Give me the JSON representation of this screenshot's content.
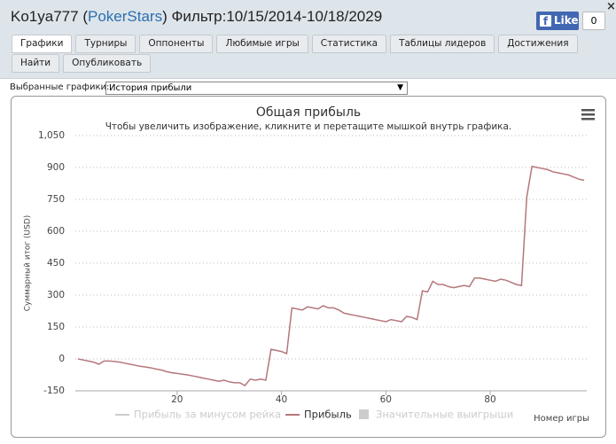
{
  "header": {
    "user": "Ko1ya777",
    "site_open": "(",
    "site": "PokerStars",
    "site_close": ")",
    "filter": "Фильтр:10/15/2014-10/18/2029",
    "like": "Like",
    "like_count": "0",
    "close": "×"
  },
  "tabs": [
    "Графики",
    "Турниры",
    "Оппоненты",
    "Любимые игры",
    "Статистика",
    "Таблицы лидеров",
    "Достижения",
    "Найти",
    "Опубликовать"
  ],
  "active_tab": 0,
  "selector": {
    "label": "Выбранные графики:",
    "value": "История прибыли"
  },
  "chart_data": {
    "type": "line",
    "title": "Общая прибыль",
    "subtitle": "Чтобы увеличить изображение, кликните и перетащите мышкой внутрь графика.",
    "ylabel": "Суммарный итог (USD)",
    "xlabel": "Номер игры",
    "x": [
      1,
      2,
      3,
      4,
      5,
      6,
      7,
      8,
      9,
      10,
      11,
      12,
      13,
      14,
      15,
      16,
      17,
      18,
      19,
      20,
      21,
      22,
      23,
      24,
      25,
      26,
      27,
      28,
      29,
      30,
      31,
      32,
      33,
      34,
      35,
      36,
      37,
      38,
      39,
      40,
      41,
      42,
      43,
      44,
      45,
      46,
      47,
      48,
      49,
      50,
      51,
      52,
      53,
      54,
      55,
      56,
      57,
      58,
      59,
      60,
      61,
      62,
      63,
      64,
      65,
      66,
      67,
      68,
      69,
      70,
      71,
      72,
      73,
      74,
      75,
      76,
      77,
      78,
      79,
      80,
      81,
      82,
      83,
      84,
      85,
      86,
      87,
      88,
      89,
      90,
      91,
      92,
      93,
      94,
      95,
      96,
      97,
      98
    ],
    "series": [
      {
        "name": "Прибыль за минусом рейка",
        "color": "#cccccc",
        "visible": false,
        "legend_symbol": "line"
      },
      {
        "name": "Прибыль",
        "color": "#b5777b",
        "visible": true,
        "legend_symbol": "line",
        "values": [
          0,
          -5,
          -10,
          -15,
          -25,
          -10,
          -10,
          -12,
          -15,
          -20,
          -25,
          -30,
          -35,
          -38,
          -42,
          -48,
          -52,
          -60,
          -65,
          -68,
          -72,
          -75,
          -80,
          -85,
          -90,
          -95,
          -100,
          -105,
          -100,
          -108,
          -112,
          -112,
          -125,
          -95,
          -100,
          -95,
          -100,
          45,
          40,
          35,
          25,
          240,
          235,
          230,
          245,
          240,
          235,
          250,
          240,
          240,
          230,
          215,
          210,
          205,
          200,
          195,
          190,
          185,
          180,
          175,
          185,
          180,
          175,
          200,
          195,
          185,
          320,
          315,
          365,
          350,
          350,
          340,
          335,
          340,
          345,
          340,
          380,
          380,
          375,
          370,
          365,
          375,
          370,
          360,
          350,
          345,
          760,
          905,
          900,
          895,
          890,
          880,
          875,
          870,
          865,
          855,
          845,
          840
        ]
      },
      {
        "name": "Значительные выигрыши",
        "color": "#cccccc",
        "visible": false,
        "legend_symbol": "square"
      }
    ],
    "xlim": [
      0.5,
      98.5
    ],
    "xticks": [
      20,
      40,
      60,
      80
    ],
    "ylim": [
      -150,
      1050
    ],
    "yticks": [
      -150,
      0,
      150,
      300,
      450,
      600,
      750,
      900,
      {
        "value": 1050,
        "label": "1,050"
      }
    ],
    "grid": true
  }
}
